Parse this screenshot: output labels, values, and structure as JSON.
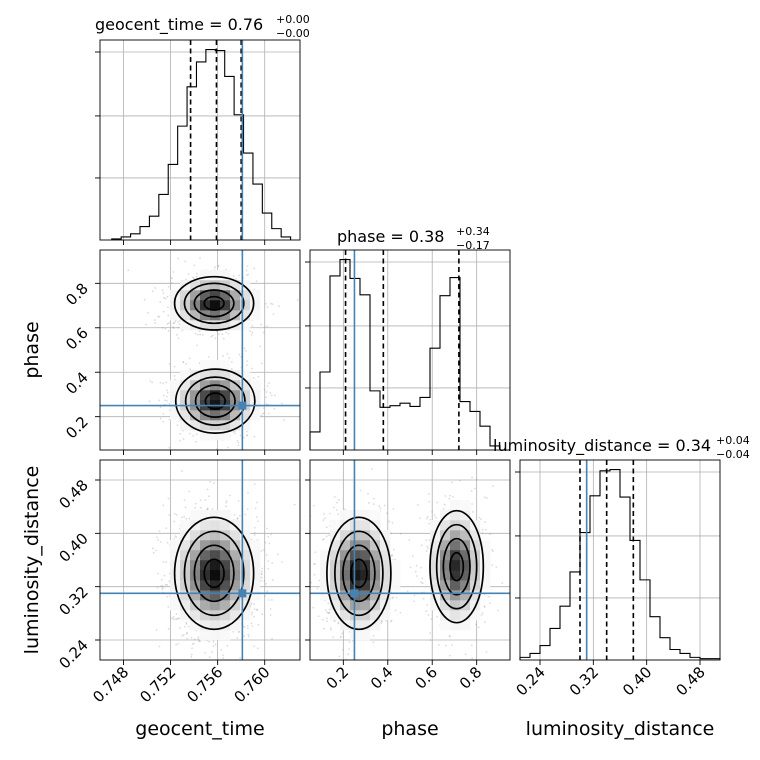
{
  "chart_data": {
    "type": "corner",
    "parameters": [
      "geocent_time",
      "phase",
      "luminosity_distance"
    ],
    "truths": {
      "geocent_time": 0.7581,
      "phase": 0.25,
      "luminosity_distance": 0.31
    },
    "titles": [
      {
        "label": "geocent_time = 0.76",
        "plus": "+0.00",
        "minus": "−0.00"
      },
      {
        "label": "phase = 0.38",
        "plus": "+0.34",
        "minus": "−0.17"
      },
      {
        "label": "luminosity_distance = 0.34",
        "plus": "+0.04",
        "minus": "−0.04"
      }
    ],
    "axis_labels": {
      "geocent_time": "geocent_time",
      "phase": "phase",
      "luminosity_distance": "luminosity_distance"
    },
    "ranges": {
      "geocent_time": [
        0.746,
        0.763
      ],
      "phase": [
        0.05,
        0.95
      ],
      "luminosity_distance": [
        0.21,
        0.51
      ]
    },
    "ticks": {
      "geocent_time": {
        "values": [
          0.748,
          0.752,
          0.756,
          0.76
        ],
        "labels": [
          "0.748",
          "0.752",
          "0.756",
          "0.760"
        ]
      },
      "phase": {
        "values": [
          0.2,
          0.4,
          0.6,
          0.8
        ],
        "labels": [
          "0.2",
          "0.4",
          "0.6",
          "0.8"
        ]
      },
      "luminosity_distance": {
        "values": [
          0.24,
          0.32,
          0.4,
          0.48
        ],
        "labels": [
          "0.24",
          "0.32",
          "0.40",
          "0.48"
        ]
      }
    },
    "quantiles": {
      "geocent_time": [
        0.7537,
        0.7559,
        0.758
      ],
      "phase": [
        0.21,
        0.38,
        0.72
      ],
      "luminosity_distance": [
        0.3,
        0.34,
        0.38
      ]
    },
    "histograms": {
      "geocent_time": {
        "edges": [
          0.747,
          0.7478,
          0.7486,
          0.7494,
          0.7502,
          0.751,
          0.7518,
          0.7526,
          0.7534,
          0.7542,
          0.755,
          0.7558,
          0.7566,
          0.7574,
          0.7582,
          0.759,
          0.7598,
          0.7606,
          0.7614,
          0.7622
        ],
        "counts": [
          1,
          3,
          6,
          13,
          23,
          44,
          73,
          110,
          148,
          172,
          184,
          183,
          158,
          121,
          84,
          54,
          26,
          11,
          3
        ]
      },
      "phase": {
        "edges": [
          0.05,
          0.095,
          0.14,
          0.185,
          0.23,
          0.275,
          0.32,
          0.365,
          0.41,
          0.455,
          0.5,
          0.545,
          0.59,
          0.635,
          0.68,
          0.725,
          0.77,
          0.815,
          0.86,
          0.905,
          0.95
        ],
        "counts": [
          22,
          95,
          212,
          232,
          209,
          189,
          72,
          52,
          54,
          57,
          53,
          64,
          124,
          188,
          210,
          59,
          47,
          29,
          5,
          0
        ]
      },
      "luminosity_distance": {
        "edges": [
          0.21,
          0.225,
          0.24,
          0.255,
          0.27,
          0.285,
          0.3,
          0.315,
          0.33,
          0.345,
          0.36,
          0.375,
          0.39,
          0.405,
          0.42,
          0.435,
          0.45,
          0.465,
          0.48,
          0.495,
          0.51
        ],
        "counts": [
          2,
          5,
          11,
          24,
          41,
          67,
          97,
          125,
          144,
          145,
          124,
          91,
          61,
          33,
          17,
          8,
          5,
          2,
          1,
          1
        ]
      }
    },
    "density_modes": {
      "geocent_time_vs_phase": [
        {
          "x": 0.7557,
          "y": 0.71,
          "sx": 0.0014,
          "sy": 0.05,
          "w": 1.0
        },
        {
          "x": 0.7558,
          "y": 0.27,
          "sx": 0.0014,
          "sy": 0.06,
          "w": 1.0
        }
      ],
      "geocent_time_vs_luminosity_distance": [
        {
          "x": 0.7557,
          "y": 0.34,
          "sx": 0.0014,
          "sy": 0.035,
          "w": 1.0
        }
      ],
      "phase_vs_luminosity_distance": [
        {
          "x": 0.27,
          "y": 0.34,
          "sx": 0.06,
          "sy": 0.035,
          "w": 1.0
        },
        {
          "x": 0.71,
          "y": 0.35,
          "sx": 0.05,
          "sy": 0.035,
          "w": 0.9
        }
      ]
    },
    "grid": true,
    "colors": {
      "truth": "#4682b4",
      "lines": "#000000",
      "grid": "#b0b0b0",
      "scatter": "#9a9a9a"
    }
  }
}
